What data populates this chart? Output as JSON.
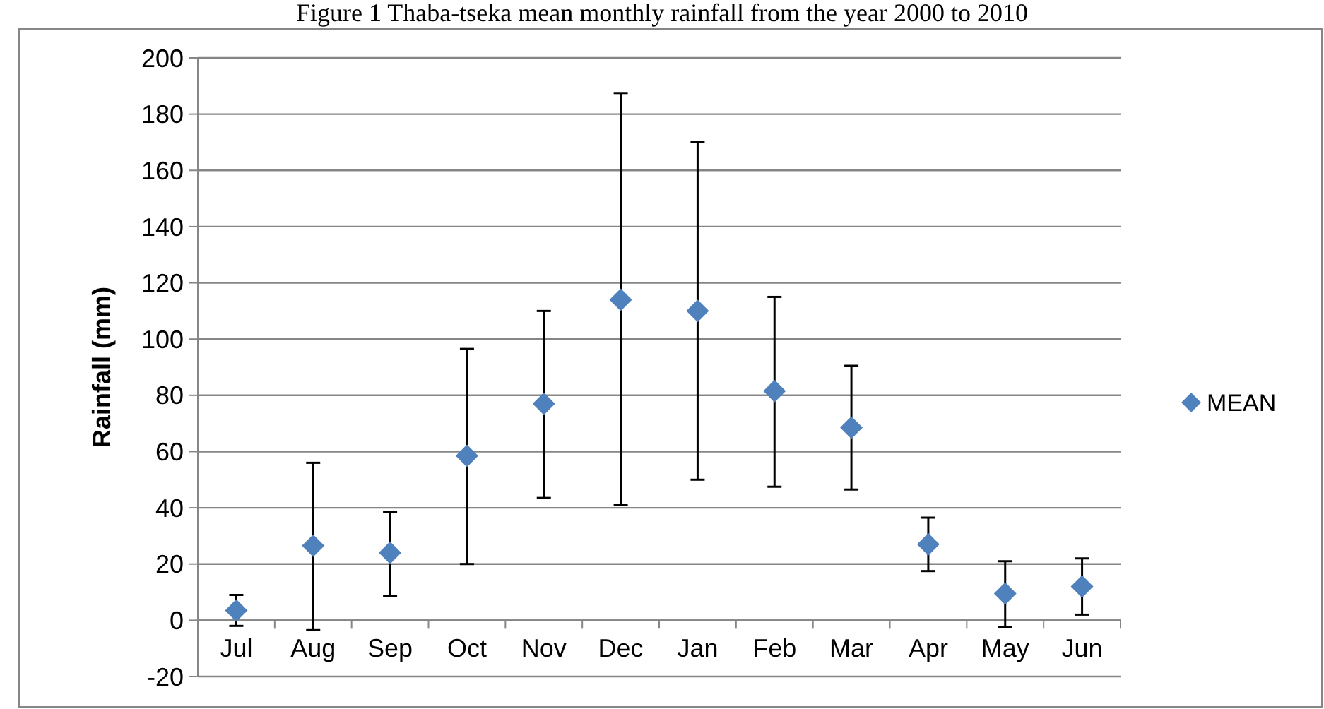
{
  "chart_data": {
    "type": "scatter",
    "title": "Figure 1 Thaba-tseka mean monthly rainfall from the year 2000 to 2010",
    "ylabel": "Rainfall (mm)",
    "categories": [
      "Jul",
      "Aug",
      "Sep",
      "Oct",
      "Nov",
      "Dec",
      "Jan",
      "Feb",
      "Mar",
      "Apr",
      "May",
      "Jun"
    ],
    "series": [
      {
        "name": "MEAN",
        "color": "#4f81bd",
        "values": [
          3.5,
          26.5,
          24,
          58.5,
          77,
          114,
          110,
          81.5,
          68.5,
          27,
          9.5,
          12
        ],
        "errors": [
          [
            -2,
            9
          ],
          [
            -3.5,
            56
          ],
          [
            8.5,
            38.5
          ],
          [
            20,
            96.5
          ],
          [
            43.5,
            110
          ],
          [
            41,
            187.5
          ],
          [
            50,
            170
          ],
          [
            47.5,
            115
          ],
          [
            46.5,
            90.5
          ],
          [
            17.5,
            36.5
          ],
          [
            -2.5,
            21
          ],
          [
            2,
            22
          ]
        ]
      }
    ],
    "ylim": [
      -20,
      200
    ],
    "yticks": [
      -20,
      0,
      20,
      40,
      60,
      80,
      100,
      120,
      140,
      160,
      180,
      200
    ],
    "grid": "y",
    "legend": "right",
    "marker": "diamond"
  }
}
